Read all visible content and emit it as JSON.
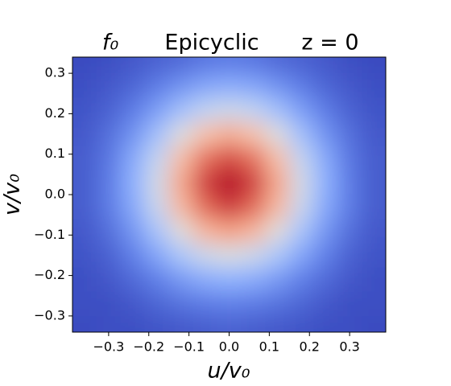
{
  "chart_data": {
    "type": "heatmap",
    "title": [
      "f₀",
      "Epicyclic",
      "z = 0"
    ],
    "xlabel": "u/v₀",
    "ylabel": "v/v₀",
    "colormap": "coolwarm",
    "xlim": [
      -0.39,
      0.39
    ],
    "ylim": [
      -0.34,
      0.34
    ],
    "xticks": [
      {
        "value": -0.3,
        "label": "−0.3"
      },
      {
        "value": -0.2,
        "label": "−0.2"
      },
      {
        "value": -0.1,
        "label": "−0.1"
      },
      {
        "value": 0,
        "label": "0.0"
      },
      0.1,
      0.2,
      0.3
    ],
    "yticks": [
      {
        "value": -0.3,
        "label": "−0.3"
      },
      {
        "value": -0.2,
        "label": "−0.2"
      },
      {
        "value": -0.1,
        "label": "−0.1"
      },
      {
        "value": 0,
        "label": "0.0"
      },
      0.1,
      0.2,
      0.3
    ],
    "x": [
      -0.36,
      -0.3,
      -0.24,
      -0.18,
      -0.12,
      -0.06,
      0,
      0.06,
      0.12,
      0.18,
      0.24,
      0.3,
      0.36
    ],
    "y": [
      0.33,
      0.27,
      0.21,
      0.15,
      0.09,
      0.03,
      -0.03,
      -0.09,
      -0.15,
      -0.21,
      -0.27,
      -0.33
    ],
    "values": [
      [
        0.0,
        0.01,
        0.03,
        0.05,
        0.07,
        0.1,
        0.11,
        0.1,
        0.07,
        0.05,
        0.03,
        0.01,
        0.0
      ],
      [
        0.01,
        0.03,
        0.06,
        0.11,
        0.17,
        0.22,
        0.24,
        0.22,
        0.17,
        0.11,
        0.06,
        0.03,
        0.01
      ],
      [
        0.02,
        0.05,
        0.11,
        0.2,
        0.31,
        0.4,
        0.44,
        0.4,
        0.31,
        0.2,
        0.11,
        0.05,
        0.02
      ],
      [
        0.03,
        0.08,
        0.17,
        0.31,
        0.49,
        0.63,
        0.69,
        0.63,
        0.49,
        0.31,
        0.17,
        0.08,
        0.03
      ],
      [
        0.04,
        0.1,
        0.23,
        0.41,
        0.64,
        0.83,
        0.9,
        0.83,
        0.64,
        0.41,
        0.23,
        0.1,
        0.04
      ],
      [
        0.04,
        0.11,
        0.25,
        0.46,
        0.71,
        0.92,
        1.0,
        0.92,
        0.71,
        0.46,
        0.25,
        0.11,
        0.04
      ],
      [
        0.04,
        0.11,
        0.23,
        0.43,
        0.66,
        0.85,
        0.93,
        0.85,
        0.66,
        0.43,
        0.23,
        0.11,
        0.04
      ],
      [
        0.03,
        0.08,
        0.18,
        0.33,
        0.51,
        0.67,
        0.73,
        0.67,
        0.51,
        0.33,
        0.18,
        0.08,
        0.03
      ],
      [
        0.02,
        0.05,
        0.12,
        0.22,
        0.34,
        0.44,
        0.48,
        0.44,
        0.34,
        0.22,
        0.12,
        0.05,
        0.02
      ],
      [
        0.01,
        0.03,
        0.07,
        0.12,
        0.19,
        0.24,
        0.26,
        0.24,
        0.19,
        0.12,
        0.07,
        0.03,
        0.01
      ],
      [
        0.01,
        0.01,
        0.03,
        0.06,
        0.09,
        0.11,
        0.12,
        0.11,
        0.09,
        0.06,
        0.03,
        0.01,
        0.01
      ],
      [
        0.0,
        0.01,
        0.01,
        0.02,
        0.03,
        0.04,
        0.05,
        0.04,
        0.03,
        0.02,
        0.01,
        0.01,
        0.0
      ]
    ]
  }
}
